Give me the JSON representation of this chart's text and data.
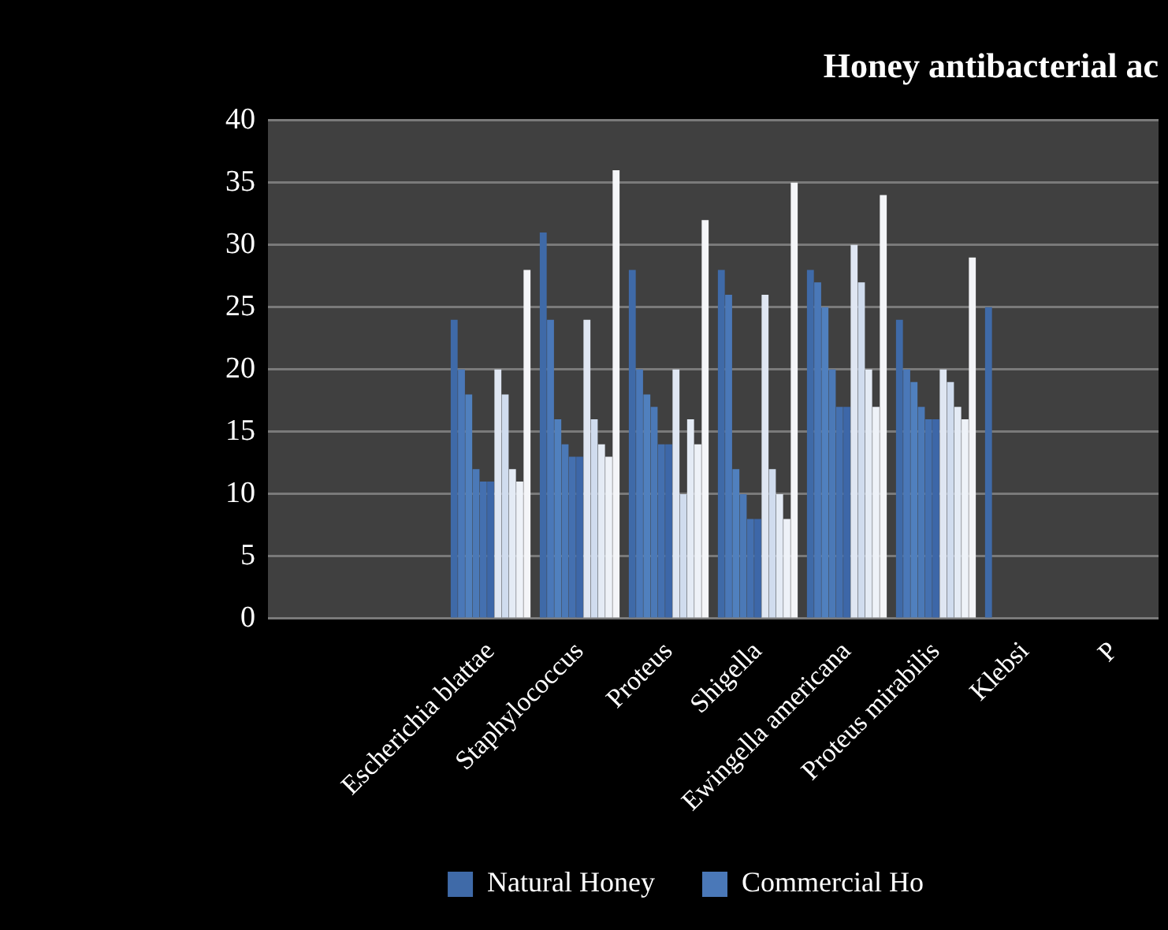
{
  "chart_data": {
    "type": "bar",
    "title": "Honey antibacterial ac",
    "categories": [
      null,
      null,
      "Escherichia blattae",
      "Staphylococcus",
      "Proteus",
      "Shigella",
      "Ewingella americana",
      "Proteus mirabilis",
      "Klebsi",
      "P"
    ],
    "series": [
      {
        "name": "Natural Honey",
        "color": "#3f6aa8",
        "values": [
          null,
          null,
          24,
          31,
          28,
          28,
          28,
          24,
          25,
          null
        ]
      },
      {
        "name": "Commercial Ho",
        "color": "#4a78b8",
        "values": [
          null,
          null,
          20,
          24,
          20,
          26,
          27,
          20,
          null,
          null
        ]
      },
      {
        "color": "#5080be",
        "values": [
          null,
          null,
          18,
          16,
          18,
          12,
          25,
          19,
          null,
          null
        ]
      },
      {
        "color": "#4b79b7",
        "values": [
          null,
          null,
          12,
          14,
          17,
          10,
          20,
          17,
          null,
          null
        ]
      },
      {
        "color": "#4470b0",
        "values": [
          null,
          null,
          11,
          13,
          14,
          8,
          17,
          16,
          null,
          null
        ]
      },
      {
        "color": "#3d67a8",
        "values": [
          null,
          null,
          11,
          13,
          14,
          8,
          17,
          16,
          null,
          null
        ]
      },
      {
        "color": "#dfe6f2",
        "values": [
          null,
          null,
          20,
          24,
          20,
          26,
          30,
          20,
          null,
          null
        ]
      },
      {
        "color": "#d0dcee",
        "values": [
          null,
          null,
          18,
          16,
          10,
          12,
          27,
          19,
          null,
          null
        ]
      },
      {
        "color": "#e4ebf5",
        "values": [
          null,
          null,
          12,
          14,
          16,
          10,
          20,
          17,
          null,
          null
        ]
      },
      {
        "color": "#eef2f8",
        "values": [
          null,
          null,
          11,
          13,
          14,
          8,
          17,
          16,
          null,
          null
        ]
      },
      {
        "color": "#f4f5f8",
        "values": [
          null,
          null,
          28,
          36,
          32,
          35,
          34,
          29,
          null,
          null
        ]
      }
    ],
    "ylim": [
      0,
      40
    ],
    "yticks": [
      0,
      5,
      10,
      15,
      20,
      25,
      30,
      35,
      40
    ],
    "grid": "y",
    "legend": "bottom"
  }
}
